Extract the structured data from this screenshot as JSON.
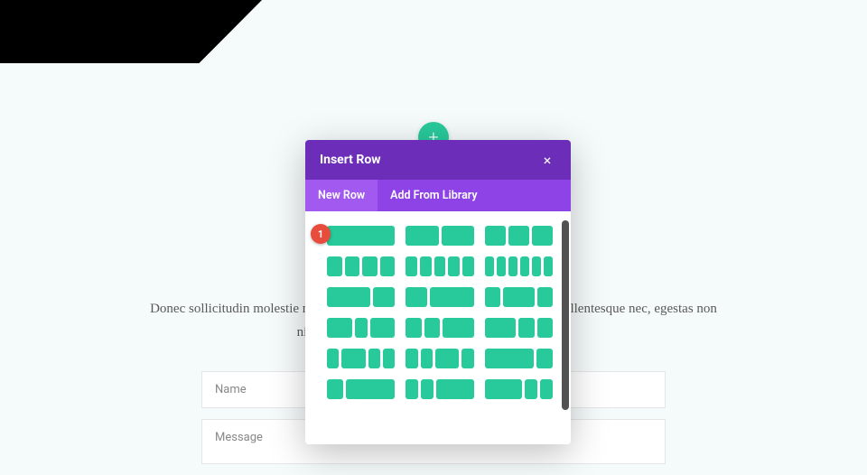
{
  "page": {
    "body_text": "Donec sollicitudin molestie malesuada. Vivamus suscipit tortor convallis a pellentesque nec, egestas non nisi. Lorem ipsum dolor sit amet pellentesque nec.",
    "form": {
      "name_placeholder": "Name",
      "message_placeholder": "Message"
    }
  },
  "add_button": {
    "icon": "+"
  },
  "modal": {
    "title": "Insert Row",
    "close_icon": "×",
    "tabs": {
      "new_row": "New Row",
      "add_from_library": "Add From Library"
    },
    "badge": "1",
    "accent_color": "#28c99b",
    "header_bg": "#6c2eb9",
    "tabs_bg": "#8e43e7",
    "active_tab_bg": "#a259f0",
    "layouts": [
      [
        1
      ],
      [
        1,
        1
      ],
      [
        1,
        1,
        1
      ],
      [
        1,
        1,
        1,
        1
      ],
      [
        1,
        1,
        1,
        1,
        1
      ],
      [
        1,
        1,
        1,
        1,
        1,
        1
      ],
      [
        2,
        1
      ],
      [
        1,
        2
      ],
      [
        1,
        2,
        1
      ],
      [
        2,
        1,
        2
      ],
      [
        1,
        1,
        2
      ],
      [
        2,
        1,
        1
      ],
      [
        1,
        2,
        1,
        1
      ],
      [
        1,
        1,
        2,
        1
      ],
      [
        3,
        1
      ],
      [
        1,
        3
      ],
      [
        1,
        1,
        3
      ],
      [
        3,
        1,
        1
      ]
    ]
  }
}
